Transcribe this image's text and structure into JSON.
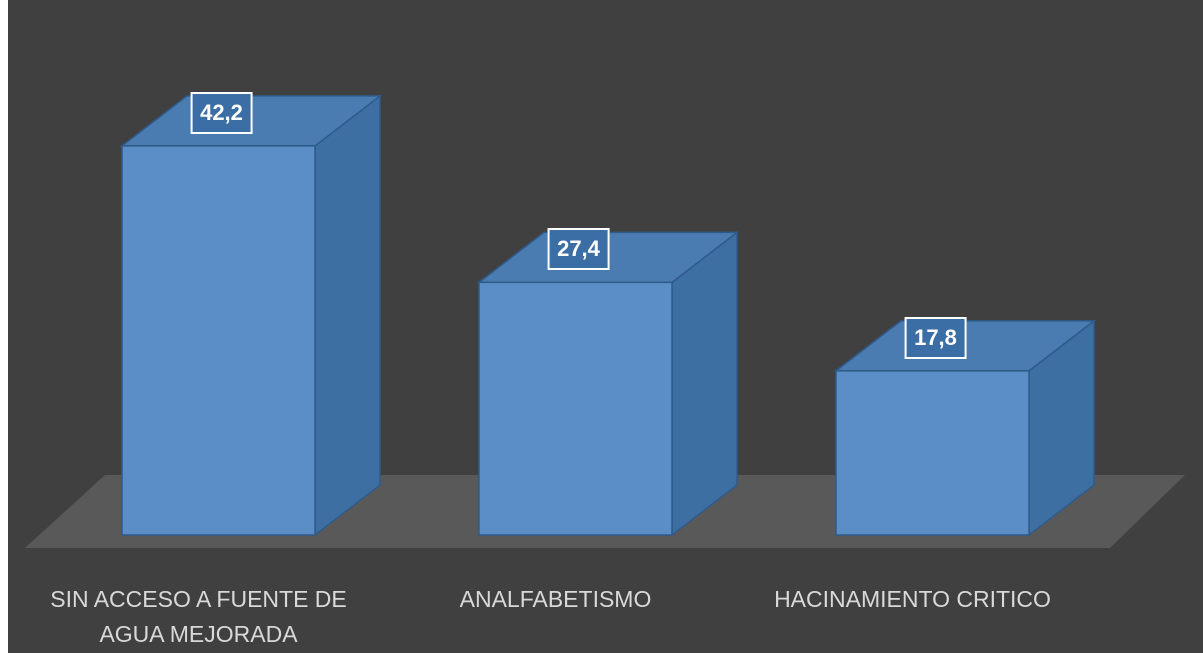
{
  "chart_data": {
    "type": "bar3d",
    "categories": [
      "SIN ACCESO A FUENTE DE AGUA MEJORADA",
      "ANALFABETISMO",
      "HACINAMIENTO CRITICO"
    ],
    "values": [
      42.2,
      27.4,
      17.8
    ],
    "value_labels": [
      "42,2",
      "27,4",
      "17,8"
    ],
    "color": "#5b8ec6"
  }
}
